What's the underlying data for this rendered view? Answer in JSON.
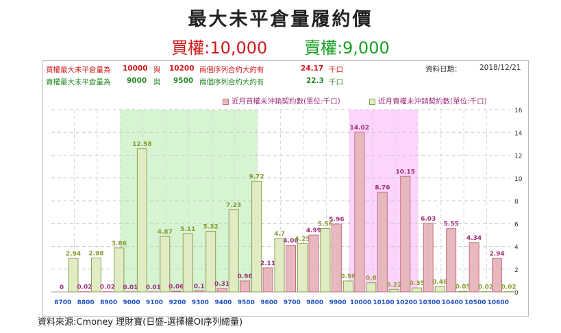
{
  "title": "最大未平倉量履約價",
  "subtitle": {
    "call": "買權:10,000",
    "put": "賣權:9,000"
  },
  "info": {
    "call_row": {
      "label": "買權最大未平倉量為",
      "strike1": "10000",
      "conj": "與",
      "strike2": "10200",
      "desc": "兩個序列合約大約有",
      "amount": "24.17",
      "unit": "千口"
    },
    "put_row": {
      "label": "賣權最大未平倉量為",
      "strike1": "9000",
      "conj": "與",
      "strike2": "9500",
      "desc": "兩個序列合約大約有",
      "amount": "22.3",
      "unit": "千口"
    },
    "date_label": "資料日期：",
    "date": "2018/12/21"
  },
  "colors": {
    "call_bar": "#e8b8bf",
    "call_border": "#c0707c",
    "put_bar": "#e2ecc4",
    "put_border": "#8aa050",
    "call_label": "#a0307a",
    "put_label": "#8a9a30",
    "green_band": "#d6f4d2",
    "pink_band": "#fcd4fc",
    "x_tick": "#2050c0"
  },
  "chart_data": {
    "type": "bar",
    "categories": [
      "8700",
      "8800",
      "8900",
      "9000",
      "9100",
      "9200",
      "9300",
      "9400",
      "9500",
      "9600",
      "9700",
      "9800",
      "9900",
      "10000",
      "10100",
      "10200",
      "10300",
      "10400",
      "10500",
      "10600"
    ],
    "series": [
      {
        "name": "近月買權未沖銷契約數(單位:千口)",
        "values": [
          0,
          0.02,
          0.02,
          0.01,
          0.01,
          0.06,
          0.1,
          0.31,
          0.96,
          2.11,
          4.08,
          4.99,
          5.96,
          14.02,
          8.76,
          10.15,
          6.03,
          5.55,
          4.34,
          2.94
        ]
      },
      {
        "name": "近月賣權未沖銷契約數(單位:千口)",
        "values": [
          2.94,
          2.98,
          3.86,
          12.58,
          4.87,
          5.11,
          5.32,
          7.23,
          9.72,
          4.7,
          4.25,
          5.56,
          0.96,
          0.8,
          0.22,
          0.35,
          0.48,
          0.05,
          0.02,
          0.02
        ]
      }
    ],
    "call_labels": [
      "0",
      "0.02",
      "0.02",
      "0.01",
      "0.01",
      "0.06",
      "0.1",
      "0.31",
      "0.96",
      "2.11",
      "4.08",
      "4.99",
      "5.96",
      "14.02",
      "8.76",
      "10.15",
      "6.03",
      "5.55",
      "4.34",
      "2.94"
    ],
    "put_labels": [
      "2.94",
      "2.98",
      "3.86",
      "12.58",
      "4.87",
      "5.11",
      "5.32",
      "7.23",
      "9.72",
      "4.7",
      "4.25",
      "5.56",
      "0.96",
      "0.8",
      "0.22",
      "0.35",
      "0.48",
      "0.05",
      "0.02",
      "0.02"
    ],
    "yticks": [
      "0",
      "2",
      "4",
      "6",
      "8",
      "10",
      "12",
      "14",
      "16"
    ],
    "ylim": [
      0,
      16
    ],
    "highlight_ranges": [
      {
        "from": "9000",
        "to": "9500",
        "color": "green"
      },
      {
        "from": "10000",
        "to": "10200",
        "color": "pink"
      }
    ],
    "grid": true,
    "legend_position": "top-right"
  },
  "source": "資料來源:Cmoney 理財寶(日盛-選擇權OI序列總量)"
}
